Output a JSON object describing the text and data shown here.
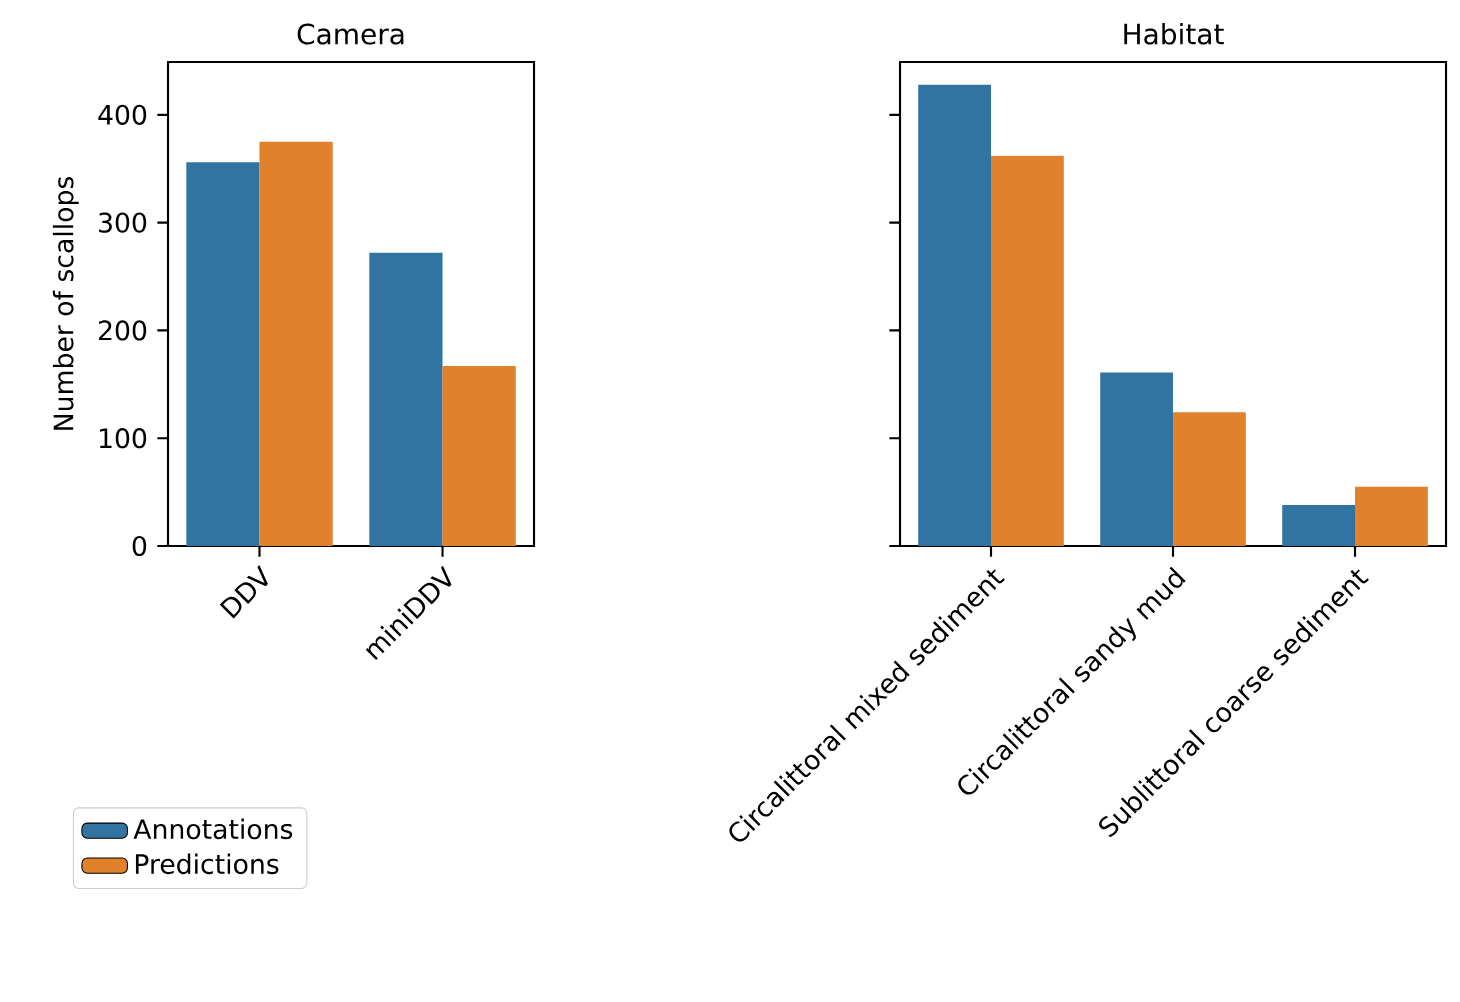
{
  "chart_data": [
    {
      "type": "bar",
      "title": "Camera",
      "ylabel": "Number of scallops",
      "categories": [
        "DDV",
        "miniDDV"
      ],
      "series": [
        {
          "name": "Annotations",
          "color": "#3274a1",
          "values": [
            356,
            272
          ]
        },
        {
          "name": "Predictions",
          "color": "#e1812c",
          "values": [
            375,
            167
          ]
        }
      ],
      "ylim": [
        0,
        449
      ],
      "yticks": [
        0,
        100,
        200,
        300,
        400
      ],
      "legend": "bottom left"
    },
    {
      "type": "bar",
      "title": "Habitat",
      "categories": [
        "Circalittoral mixed sediment",
        "Circalittoral sandy mud",
        "Sublittoral coarse sediment"
      ],
      "series": [
        {
          "color": "#3274a1",
          "values": [
            428,
            161,
            38
          ]
        },
        {
          "color": "#e1812c",
          "values": [
            362,
            124,
            55
          ]
        }
      ],
      "ylim": [
        0,
        449
      ],
      "yticks": [
        0,
        100,
        200,
        300,
        400
      ],
      "tick_labels": "x"
    }
  ]
}
